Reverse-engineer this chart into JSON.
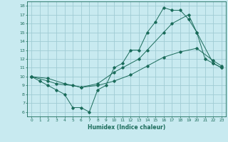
{
  "xlabel": "Humidex (Indice chaleur)",
  "bg_color": "#c8eaf0",
  "line_color": "#1a6b5a",
  "grid_color": "#a0ccd4",
  "xlim": [
    -0.5,
    23.5
  ],
  "ylim": [
    5.5,
    18.5
  ],
  "xticks": [
    0,
    1,
    2,
    3,
    4,
    5,
    6,
    7,
    8,
    9,
    10,
    11,
    12,
    13,
    14,
    15,
    16,
    17,
    18,
    19,
    20,
    21,
    22,
    23
  ],
  "yticks": [
    6,
    7,
    8,
    9,
    10,
    11,
    12,
    13,
    14,
    15,
    16,
    17,
    18
  ],
  "line1_x": [
    0,
    1,
    2,
    3,
    4,
    5,
    6,
    7,
    8,
    9,
    10,
    11,
    12,
    13,
    14,
    15,
    16,
    17,
    18,
    19,
    20,
    21,
    22,
    23
  ],
  "line1_y": [
    10,
    9.5,
    9,
    8.5,
    8,
    6.5,
    6.5,
    6,
    8.5,
    9,
    11,
    11.5,
    13,
    13,
    15,
    16.2,
    17.8,
    17.5,
    17.5,
    16.5,
    15,
    12,
    11.5,
    11
  ],
  "line2_x": [
    0,
    2,
    3,
    5,
    6,
    8,
    10,
    11,
    13,
    14,
    16,
    17,
    19,
    20,
    22,
    23
  ],
  "line2_y": [
    10,
    9.5,
    9.2,
    9.0,
    8.8,
    9.2,
    10.5,
    11.0,
    12.0,
    13.0,
    15.0,
    16.0,
    17.0,
    15.0,
    11.5,
    11.0
  ],
  "line3_x": [
    0,
    2,
    4,
    6,
    8,
    10,
    12,
    14,
    16,
    18,
    20,
    22,
    23
  ],
  "line3_y": [
    10,
    9.8,
    9.2,
    8.8,
    9.0,
    9.5,
    10.2,
    11.2,
    12.2,
    12.8,
    13.2,
    11.8,
    11.2
  ]
}
